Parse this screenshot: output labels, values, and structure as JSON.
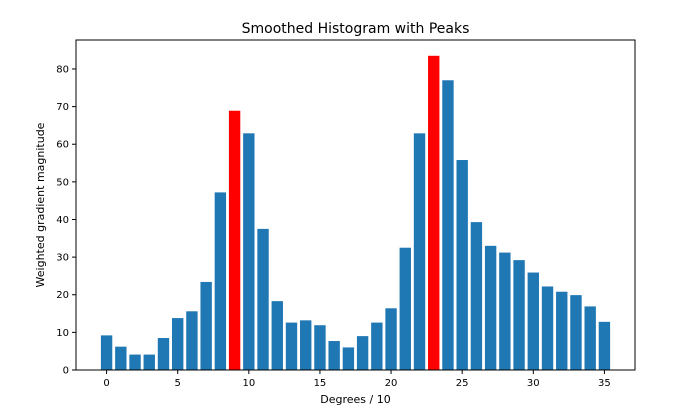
{
  "chart_data": {
    "type": "bar",
    "title": "Smoothed Histogram with Peaks",
    "xlabel": "Degrees / 10",
    "ylabel": "Weighted gradient magnitude",
    "x": [
      0,
      1,
      2,
      3,
      4,
      5,
      6,
      7,
      8,
      9,
      10,
      11,
      12,
      13,
      14,
      15,
      16,
      17,
      18,
      19,
      20,
      21,
      22,
      23,
      24,
      25,
      26,
      27,
      28,
      29,
      30,
      31,
      32,
      33,
      34,
      35
    ],
    "values": [
      9.2,
      6.2,
      4.1,
      4.1,
      8.5,
      13.8,
      15.6,
      23.4,
      47.2,
      68.9,
      62.9,
      37.5,
      18.3,
      12.6,
      13.2,
      11.9,
      7.7,
      6.0,
      9.0,
      12.6,
      16.4,
      32.5,
      62.9,
      83.5,
      77.0,
      55.8,
      39.3,
      33.0,
      31.2,
      29.2,
      25.9,
      22.2,
      20.8,
      19.9,
      16.9,
      12.8
    ],
    "highlight_indices": [
      9,
      23
    ],
    "colors": {
      "bar": "#1f77b4",
      "peak": "#ff0000"
    },
    "xlim": [
      -2.15,
      37.15
    ],
    "ylim": [
      0,
      87.7
    ],
    "x_ticks": [
      0,
      5,
      10,
      15,
      20,
      25,
      30,
      35
    ],
    "y_ticks": [
      0,
      10,
      20,
      30,
      40,
      50,
      60,
      70,
      80
    ],
    "grid": false,
    "legend": null
  }
}
